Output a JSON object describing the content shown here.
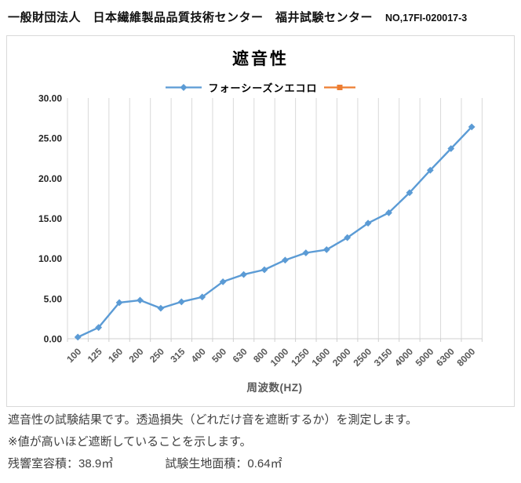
{
  "header": {
    "organization": "一般財団法人　日本繊維製品品質技術センター　福井試験センター",
    "report_no": "NO,17FI-020017-3"
  },
  "chart_data": {
    "type": "line",
    "title": "遮音性",
    "xlabel": "周波数(HZ)",
    "ylabel": "",
    "ylim": [
      0,
      30
    ],
    "ytick_step": 5,
    "ytick_labels": [
      "0.00",
      "5.00",
      "10.00",
      "15.00",
      "20.00",
      "25.00",
      "30.00"
    ],
    "grid": "vertical-only",
    "legend_position": "top",
    "legend": [
      {
        "label": "フォーシーズンエコロ",
        "color": "#5B9BD5",
        "marker": "diamond"
      },
      {
        "label": "",
        "color": "#ED7D31",
        "marker": "square"
      }
    ],
    "categories": [
      "100",
      "125",
      "160",
      "200",
      "250",
      "315",
      "400",
      "500",
      "630",
      "800",
      "1000",
      "1250",
      "1600",
      "2000",
      "2500",
      "3150",
      "4000",
      "5000",
      "6300",
      "8000"
    ],
    "series": [
      {
        "name": "フォーシーズンエコロ",
        "color": "#5B9BD5",
        "values": [
          0.2,
          1.4,
          4.5,
          4.8,
          3.8,
          4.6,
          5.2,
          7.1,
          8.0,
          8.6,
          9.8,
          10.7,
          11.1,
          12.6,
          14.4,
          15.7,
          18.2,
          21.0,
          23.7,
          26.4
        ]
      }
    ]
  },
  "notes": {
    "line1": "遮音性の試験結果です。透過損失（どれだけ音を遮断するか）を測定します。",
    "line2": "※値が高いほど遮断していることを示します。",
    "room_volume_label": "残響室容積：",
    "room_volume_value": "38.9㎥",
    "specimen_area_label": "試験生地面積：",
    "specimen_area_value": "0.64㎡"
  },
  "colors": {
    "series_blue": "#5B9BD5",
    "series_orange": "#ED7D31",
    "gridline": "#D9D9D9",
    "axis_line": "#CFCFCF",
    "x_tick_text": "#595959",
    "y_tick_text": "#262626"
  }
}
